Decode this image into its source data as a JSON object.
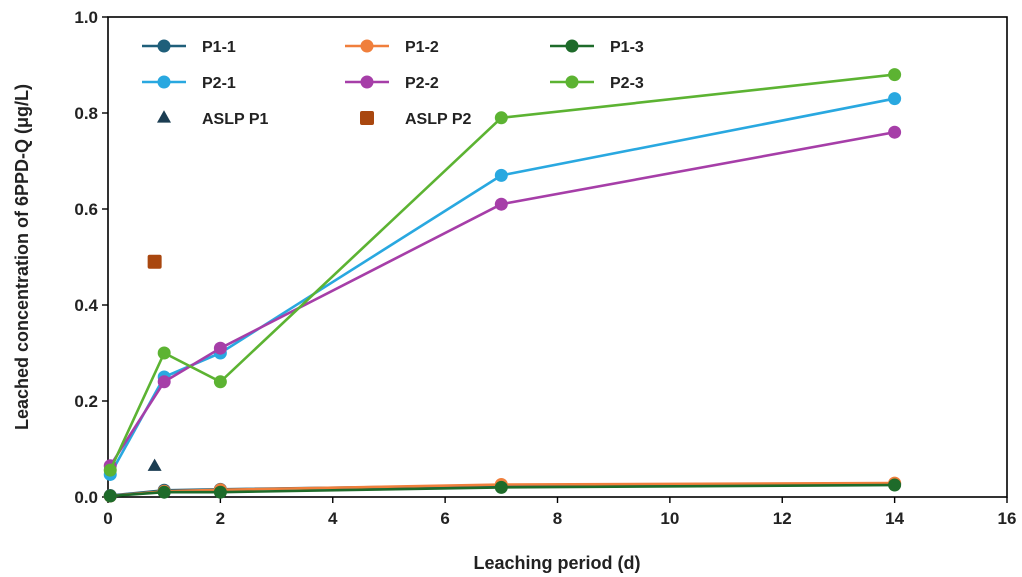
{
  "chart_data": {
    "type": "line",
    "title": "",
    "xlabel": "Leaching period (d)",
    "ylabel": "Leached concentration of 6PPD-Q (μg/L)",
    "xlim": [
      0,
      16
    ],
    "ylim": [
      0,
      1.0
    ],
    "xticks": [
      "0",
      "2",
      "4",
      "6",
      "8",
      "10",
      "12",
      "14",
      "16"
    ],
    "yticks": [
      "0.0",
      "0.2",
      "0.4",
      "0.6",
      "0.8",
      "1.0"
    ],
    "grid": false,
    "legend_position": "top-left",
    "series": [
      {
        "name": "P1-1",
        "color": "#1f5f7a",
        "marker": "circle",
        "line": true,
        "x": [
          0.04,
          1,
          2,
          7,
          14
        ],
        "y": [
          0.003,
          0.014,
          0.016,
          0.024,
          0.027
        ]
      },
      {
        "name": "P1-2",
        "color": "#f07f3c",
        "marker": "circle",
        "line": true,
        "x": [
          0.04,
          1,
          2,
          7,
          14
        ],
        "y": [
          0.002,
          0.012,
          0.015,
          0.026,
          0.029
        ]
      },
      {
        "name": "P1-3",
        "color": "#1e6b2a",
        "marker": "circle",
        "line": true,
        "x": [
          0.04,
          1,
          2,
          7,
          14
        ],
        "y": [
          0.002,
          0.01,
          0.01,
          0.02,
          0.025
        ]
      },
      {
        "name": "P2-1",
        "color": "#29a8e0",
        "marker": "circle",
        "line": true,
        "x": [
          0.04,
          1,
          2,
          7,
          14
        ],
        "y": [
          0.047,
          0.25,
          0.3,
          0.67,
          0.83
        ]
      },
      {
        "name": "P2-2",
        "color": "#a63ea8",
        "marker": "circle",
        "line": true,
        "x": [
          0.04,
          1,
          2,
          7,
          14
        ],
        "y": [
          0.065,
          0.24,
          0.31,
          0.61,
          0.76
        ]
      },
      {
        "name": "P2-3",
        "color": "#5cb332",
        "marker": "circle",
        "line": true,
        "x": [
          0.04,
          1,
          2,
          7,
          14
        ],
        "y": [
          0.056,
          0.3,
          0.24,
          0.79,
          0.88
        ]
      },
      {
        "name": "ASLP P1",
        "color": "#1b3d52",
        "marker": "triangle",
        "line": false,
        "x": [
          0.83
        ],
        "y": [
          0.064
        ]
      },
      {
        "name": "ASLP P2",
        "color": "#a9470f",
        "marker": "square",
        "line": false,
        "x": [
          0.83
        ],
        "y": [
          0.49
        ]
      }
    ]
  }
}
